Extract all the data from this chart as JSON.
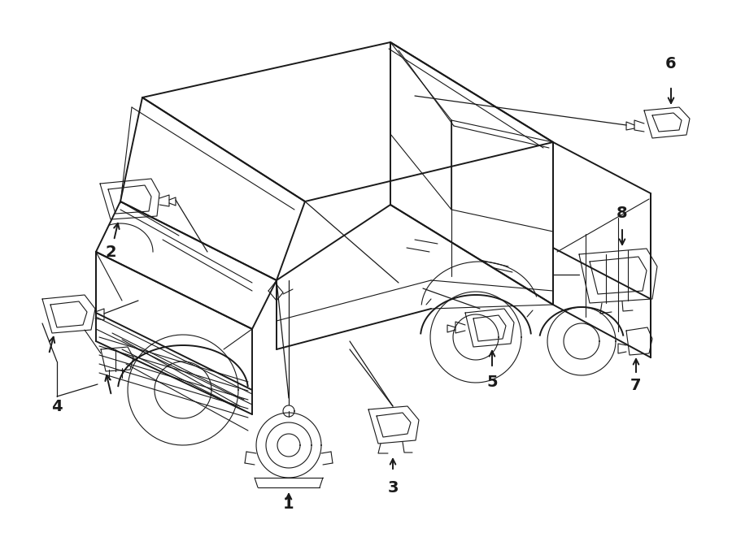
{
  "background_color": "#ffffff",
  "line_color": "#1a1a1a",
  "lw_main": 1.4,
  "lw_thin": 0.8,
  "lw_leader": 0.9,
  "label_fontsize": 14,
  "figsize": [
    9.0,
    6.61
  ],
  "dpi": 100
}
